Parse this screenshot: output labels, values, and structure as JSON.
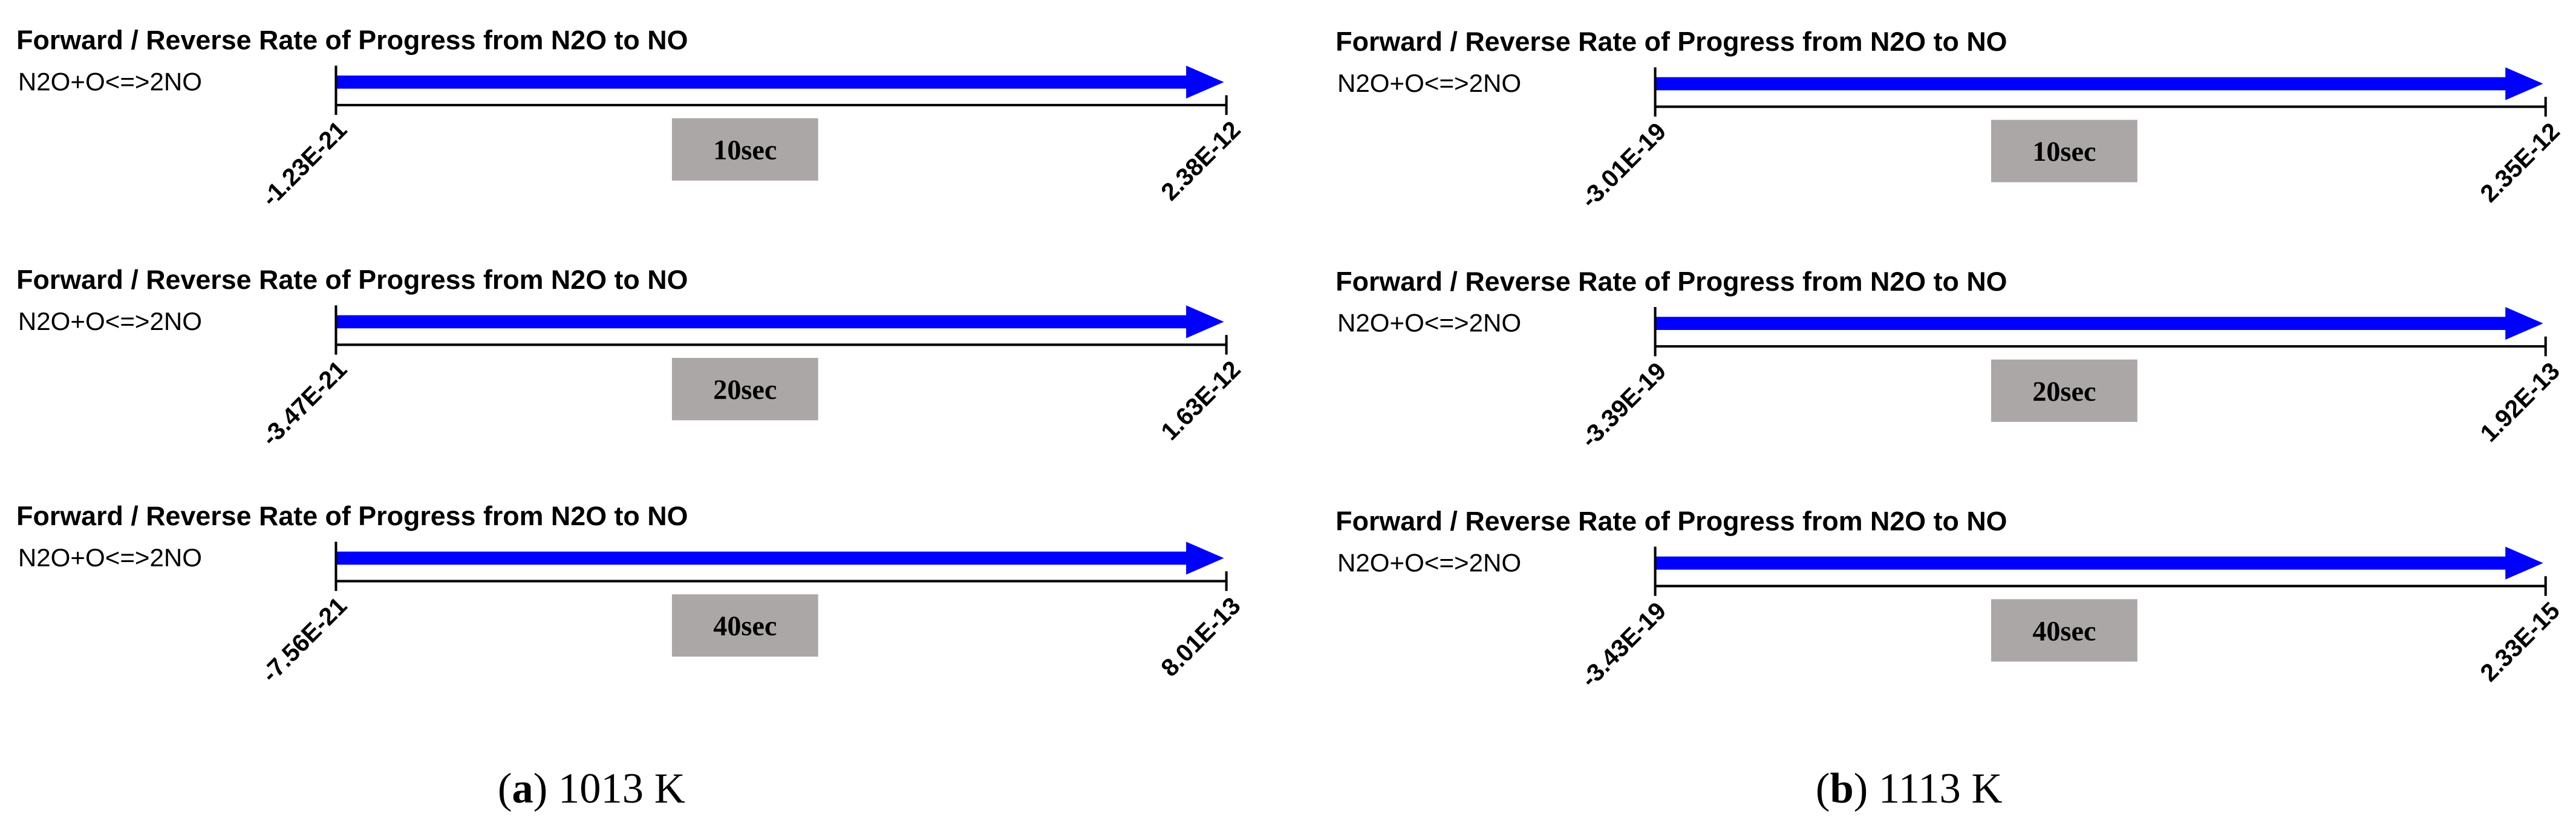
{
  "panels": [
    {
      "caption": {
        "open": "(",
        "label": "a",
        "rest": ") 1013 K"
      },
      "rows": [
        {
          "title": "Forward / Reverse Rate of Progress from N2O to NO",
          "reaction": "N2O+O<=>2NO",
          "min": "-1.23E-21",
          "max": "2.38E-12",
          "time": "10sec"
        },
        {
          "title": "Forward / Reverse Rate of Progress from N2O to NO",
          "reaction": "N2O+O<=>2NO",
          "min": "-3.47E-21",
          "max": "1.63E-12",
          "time": "20sec"
        },
        {
          "title": "Forward / Reverse Rate of Progress from N2O to NO",
          "reaction": "N2O+O<=>2NO",
          "min": "-7.56E-21",
          "max": "8.01E-13",
          "time": "40sec"
        }
      ]
    },
    {
      "caption": {
        "open": "(",
        "label": "b",
        "rest": ") 1113 K"
      },
      "rows": [
        {
          "title": "Forward / Reverse Rate of Progress from N2O to NO",
          "reaction": "N2O+O<=>2NO",
          "min": "-3.01E-19",
          "max": "2.35E-12",
          "time": "10sec"
        },
        {
          "title": "Forward / Reverse Rate of Progress from N2O to NO",
          "reaction": "N2O+O<=>2NO",
          "min": "-3.39E-19",
          "max": "1.92E-13",
          "time": "20sec"
        },
        {
          "title": "Forward / Reverse Rate of Progress from N2O to NO",
          "reaction": "N2O+O<=>2NO",
          "min": "-3.43E-19",
          "max": "2.33E-15",
          "time": "40sec"
        }
      ]
    }
  ]
}
